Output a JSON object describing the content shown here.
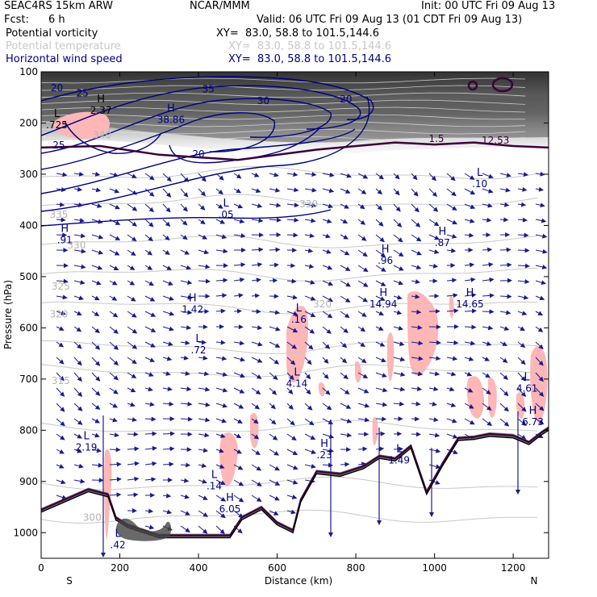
{
  "header": {
    "model": "SEAC4RS 15km ARW",
    "center": "NCAR/MMM",
    "init": "Init: 00 UTC Fri 09 Aug 13",
    "fcst_label": "Fcst:",
    "fcst_value": "6 h",
    "valid": "Valid: 06 UTC Fri 09 Aug 13 (01 CDT Fri 09 Aug 13)"
  },
  "legend": [
    {
      "label": "Potential vorticity",
      "xy": "XY=  83.0, 58.8 to 101.5,144.6",
      "color": "#000000"
    },
    {
      "label": "Potential temperature",
      "xy": "XY=  83.0, 58.8 to 101.5,144.6",
      "color": "#c8c8c8"
    },
    {
      "label": "Horizontal wind speed",
      "xy": "XY=  83.0, 58.8 to 101.5,144.6",
      "color": "#000080"
    }
  ],
  "chart_data": {
    "type": "cross-section",
    "xlabel": "Distance (km)",
    "ylabel": "Pressure (hPa)",
    "xlim": [
      0,
      1290
    ],
    "ylim": [
      1050,
      100
    ],
    "x_ticks": [
      0,
      200,
      400,
      600,
      800,
      1000,
      1200
    ],
    "y_ticks": [
      100,
      200,
      300,
      400,
      500,
      600,
      700,
      800,
      900,
      1000
    ],
    "endpoints": {
      "left": "S",
      "right": "N"
    },
    "theta_labels": [
      {
        "text": "340",
        "x": 155,
        "p": 230
      },
      {
        "text": "330",
        "x": 680,
        "p": 365
      },
      {
        "text": "335",
        "x": 45,
        "p": 385
      },
      {
        "text": "330",
        "x": 90,
        "p": 445
      },
      {
        "text": "325",
        "x": 50,
        "p": 525
      },
      {
        "text": "320",
        "x": 715,
        "p": 560
      },
      {
        "text": "320",
        "x": 45,
        "p": 580
      },
      {
        "text": "315",
        "x": 50,
        "p": 710
      },
      {
        "text": "300",
        "x": 130,
        "p": 977
      }
    ],
    "speed_labels": [
      {
        "text": "20",
        "x": 40,
        "p": 138
      },
      {
        "text": "25",
        "x": 105,
        "p": 148
      },
      {
        "text": "35",
        "x": 425,
        "p": 140
      },
      {
        "text": "30",
        "x": 565,
        "p": 163
      },
      {
        "text": "20",
        "x": 775,
        "p": 160
      },
      {
        "text": "25",
        "x": 45,
        "p": 250
      },
      {
        "text": "20",
        "x": 400,
        "p": 267
      }
    ],
    "pv_labels": [
      {
        "text": "1.5",
        "x": 1005,
        "p": 237
      },
      {
        "text": "12.53",
        "x": 1155,
        "p": 240
      }
    ],
    "extrema": [
      {
        "kind": "H",
        "value": "38.86",
        "x": 330,
        "p": 200,
        "color": "#000080"
      },
      {
        "kind": "H",
        "value": "2.37",
        "x": 152,
        "p": 182,
        "color": "#000000"
      },
      {
        "kind": "L",
        "value": ".725",
        "x": 40,
        "p": 210,
        "color": "#000000"
      },
      {
        "kind": "L",
        "value": ".05",
        "x": 470,
        "p": 385,
        "color": "#000080"
      },
      {
        "kind": "H",
        "value": ".91",
        "x": 60,
        "p": 435,
        "color": "#000080"
      },
      {
        "kind": "L",
        "value": ".10",
        "x": 1115,
        "p": 325,
        "color": "#000080"
      },
      {
        "kind": "H",
        "value": ".87",
        "x": 1020,
        "p": 440,
        "color": "#000080"
      },
      {
        "kind": "H",
        "value": ".96",
        "x": 875,
        "p": 475,
        "color": "#000080"
      },
      {
        "kind": "H",
        "value": "1.42",
        "x": 385,
        "p": 570,
        "color": "#000080"
      },
      {
        "kind": "L",
        "value": ".16",
        "x": 655,
        "p": 590,
        "color": "#000080"
      },
      {
        "kind": "H",
        "value": "14.94",
        "x": 870,
        "p": 560,
        "color": "#000080"
      },
      {
        "kind": "H",
        "value": "14.65",
        "x": 1090,
        "p": 560,
        "color": "#000080"
      },
      {
        "kind": "L",
        "value": ".72",
        "x": 400,
        "p": 650,
        "color": "#000080"
      },
      {
        "kind": "L",
        "value": "4.14",
        "x": 650,
        "p": 715,
        "color": "#000080"
      },
      {
        "kind": "L",
        "value": "4.61",
        "x": 1235,
        "p": 725,
        "color": "#000080"
      },
      {
        "kind": "H",
        "value": "6.73",
        "x": 1250,
        "p": 790,
        "color": "#000080"
      },
      {
        "kind": "L",
        "value": "2.19",
        "x": 115,
        "p": 840,
        "color": "#000080"
      },
      {
        "kind": "H",
        "value": ".23",
        "x": 720,
        "p": 855,
        "color": "#000080"
      },
      {
        "kind": "L",
        "value": "1.49",
        "x": 910,
        "p": 865,
        "color": "#000080"
      },
      {
        "kind": "L",
        "value": ".14",
        "x": 440,
        "p": 915,
        "color": "#000080"
      },
      {
        "kind": "H",
        "value": "6.05",
        "x": 480,
        "p": 960,
        "color": "#000080"
      },
      {
        "kind": "L",
        "value": ".42",
        "x": 195,
        "p": 1030,
        "color": "#000080"
      }
    ],
    "tropopause_pv": [
      [
        0,
        248
      ],
      [
        150,
        245
      ],
      [
        300,
        262
      ],
      [
        500,
        272
      ],
      [
        700,
        252
      ],
      [
        900,
        238
      ],
      [
        1000,
        242
      ],
      [
        1100,
        238
      ],
      [
        1200,
        245
      ],
      [
        1290,
        248
      ]
    ],
    "terrain_pressure": [
      [
        0,
        960
      ],
      [
        120,
        920
      ],
      [
        170,
        930
      ],
      [
        190,
        975
      ],
      [
        220,
        990
      ],
      [
        300,
        1010
      ],
      [
        480,
        1010
      ],
      [
        510,
        975
      ],
      [
        560,
        955
      ],
      [
        600,
        985
      ],
      [
        640,
        1000
      ],
      [
        660,
        940
      ],
      [
        700,
        885
      ],
      [
        760,
        890
      ],
      [
        820,
        875
      ],
      [
        860,
        855
      ],
      [
        900,
        860
      ],
      [
        940,
        835
      ],
      [
        980,
        925
      ],
      [
        1020,
        870
      ],
      [
        1060,
        820
      ],
      [
        1100,
        818
      ],
      [
        1140,
        812
      ],
      [
        1200,
        815
      ],
      [
        1240,
        828
      ],
      [
        1270,
        810
      ],
      [
        1290,
        800
      ]
    ]
  },
  "colors": {
    "pv": "#3a003a",
    "pv_fill": "#ffb6b6",
    "theta": "#c8c8c8",
    "speed": "#000080",
    "wind_vectors": "#1a1a8c"
  }
}
